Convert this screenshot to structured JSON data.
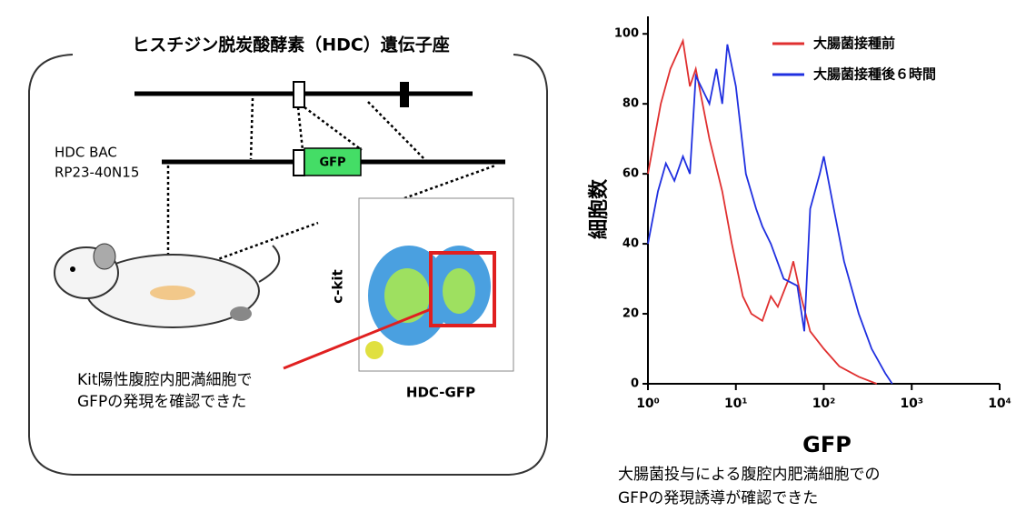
{
  "diagram": {
    "title": "ヒスチジン脱炭酸酵素（HDC）遺伝子座",
    "bac_label": [
      "HDC BAC",
      "RP23-40N15"
    ],
    "gfp_box": "GFP",
    "facs_y_label": "c-kit",
    "facs_x_label": "HDC-GFP",
    "note": [
      "Kit陽性腹腔内肥満細胞で",
      "GFPの発現を確認できた"
    ]
  },
  "chart_data": {
    "type": "line",
    "y_label": "細胞数",
    "x_label": "GFP",
    "caption": [
      "大腸菌投与による腹腔内肥満細胞での",
      "GFPの発現誘導が確認できた"
    ],
    "log_x": true,
    "xlim": [
      1,
      10000
    ],
    "xticks": [
      {
        "value": 1,
        "label": "10⁰"
      },
      {
        "value": 10,
        "label": "10¹"
      },
      {
        "value": 100,
        "label": "10²"
      },
      {
        "value": 1000,
        "label": "10³"
      },
      {
        "value": 10000,
        "label": "10⁴"
      }
    ],
    "ylim": [
      0,
      105
    ],
    "yticks": [
      0,
      20,
      40,
      60,
      80,
      100
    ],
    "series": [
      {
        "name": "大腸菌接種前",
        "color": "#e03030",
        "x": [
          1,
          1.4,
          1.8,
          2.5,
          3,
          3.5,
          5,
          7,
          9,
          12,
          15,
          20,
          25,
          30,
          40,
          45,
          55,
          70,
          100,
          150,
          250,
          400
        ],
        "values": [
          60,
          80,
          90,
          98,
          85,
          90,
          70,
          55,
          40,
          25,
          20,
          18,
          25,
          22,
          30,
          35,
          25,
          15,
          10,
          5,
          2,
          0
        ]
      },
      {
        "name": "大腸菌接種後６時間",
        "color": "#2030e0",
        "x": [
          1,
          1.3,
          1.6,
          2,
          2.5,
          3,
          3.5,
          5,
          6,
          7,
          8,
          10,
          13,
          17,
          20,
          25,
          35,
          50,
          60,
          70,
          90,
          100,
          130,
          170,
          250,
          350,
          500,
          600
        ],
        "values": [
          40,
          55,
          63,
          58,
          65,
          60,
          88,
          80,
          90,
          80,
          97,
          85,
          60,
          50,
          45,
          40,
          30,
          28,
          15,
          50,
          60,
          65,
          50,
          35,
          20,
          10,
          3,
          0
        ]
      }
    ]
  }
}
